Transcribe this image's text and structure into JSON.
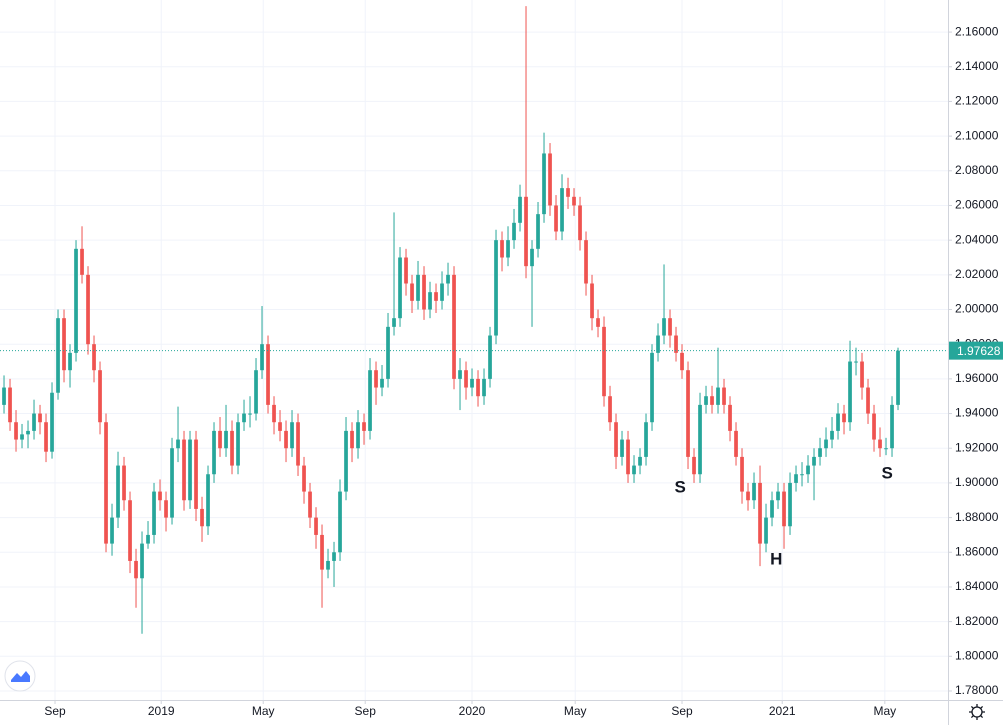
{
  "chart_data": {
    "type": "candlestick",
    "up_color": "#26a69a",
    "down_color": "#ef5350",
    "grid": true,
    "ylim": [
      1.7748,
      2.1785
    ],
    "xlim": [
      -0.67,
      157.33
    ],
    "yticks": [
      {
        "value": 1.78,
        "label": "1.78000"
      },
      {
        "value": 1.8,
        "label": "1.80000"
      },
      {
        "value": 1.82,
        "label": "1.82000"
      },
      {
        "value": 1.84,
        "label": "1.84000"
      },
      {
        "value": 1.86,
        "label": "1.86000"
      },
      {
        "value": 1.88,
        "label": "1.88000"
      },
      {
        "value": 1.9,
        "label": "1.90000"
      },
      {
        "value": 1.92,
        "label": "1.92000"
      },
      {
        "value": 1.94,
        "label": "1.94000"
      },
      {
        "value": 1.96,
        "label": "1.96000"
      },
      {
        "value": 1.98,
        "label": "1.98000"
      },
      {
        "value": 2.0,
        "label": "2.00000"
      },
      {
        "value": 2.02,
        "label": "2.02000"
      },
      {
        "value": 2.04,
        "label": "2.04000"
      },
      {
        "value": 2.06,
        "label": "2.06000"
      },
      {
        "value": 2.08,
        "label": "2.08000"
      },
      {
        "value": 2.1,
        "label": "2.10000"
      },
      {
        "value": 2.12,
        "label": "2.12000"
      },
      {
        "value": 2.14,
        "label": "2.14000"
      },
      {
        "value": 2.16,
        "label": "2.16000"
      }
    ],
    "xticks": [
      {
        "value": 8.5,
        "label": "Sep"
      },
      {
        "value": 26.2,
        "label": "2019"
      },
      {
        "value": 43.2,
        "label": "May"
      },
      {
        "value": 60.2,
        "label": "Sep"
      },
      {
        "value": 78,
        "label": "2020"
      },
      {
        "value": 95.2,
        "label": "May"
      },
      {
        "value": 113,
        "label": "Sep"
      },
      {
        "value": 129.7,
        "label": "2021"
      },
      {
        "value": 146.8,
        "label": "May"
      }
    ],
    "last_label": "1.97628",
    "annotations": [
      {
        "text": "S",
        "x": 112.7,
        "y": 1.897
      },
      {
        "text": "H",
        "x": 128.7,
        "y": 1.8556
      },
      {
        "text": "S",
        "x": 147.2,
        "y": 1.905
      }
    ],
    "ohlc": [
      [
        1.945,
        1.962,
        1.94,
        1.955
      ],
      [
        1.955,
        1.96,
        1.93,
        1.935
      ],
      [
        1.935,
        1.942,
        1.918,
        1.925
      ],
      [
        1.925,
        1.934,
        1.92,
        1.928
      ],
      [
        1.928,
        1.936,
        1.92,
        1.93
      ],
      [
        1.93,
        1.948,
        1.925,
        1.94
      ],
      [
        1.94,
        1.945,
        1.928,
        1.935
      ],
      [
        1.935,
        1.94,
        1.912,
        1.918
      ],
      [
        1.918,
        1.958,
        1.914,
        1.952
      ],
      [
        1.952,
        2.0,
        1.948,
        1.995
      ],
      [
        1.995,
        2.0,
        1.958,
        1.965
      ],
      [
        1.965,
        1.98,
        1.955,
        1.975
      ],
      [
        1.975,
        2.04,
        1.97,
        2.035
      ],
      [
        2.035,
        2.048,
        2.015,
        2.02
      ],
      [
        2.02,
        2.025,
        1.974,
        1.98
      ],
      [
        1.98,
        1.985,
        1.958,
        1.965
      ],
      [
        1.965,
        1.97,
        1.928,
        1.935
      ],
      [
        1.935,
        1.94,
        1.86,
        1.865
      ],
      [
        1.865,
        1.888,
        1.858,
        1.88
      ],
      [
        1.88,
        1.918,
        1.874,
        1.91
      ],
      [
        1.91,
        1.915,
        1.884,
        1.89
      ],
      [
        1.89,
        1.895,
        1.848,
        1.855
      ],
      [
        1.855,
        1.862,
        1.828,
        1.845
      ],
      [
        1.845,
        1.872,
        1.813,
        1.865
      ],
      [
        1.865,
        1.878,
        1.862,
        1.87
      ],
      [
        1.87,
        1.9,
        1.865,
        1.895
      ],
      [
        1.895,
        1.902,
        1.884,
        1.89
      ],
      [
        1.89,
        1.895,
        1.872,
        1.88
      ],
      [
        1.88,
        1.926,
        1.876,
        1.92
      ],
      [
        1.92,
        1.944,
        1.912,
        1.925
      ],
      [
        1.925,
        1.93,
        1.884,
        1.89
      ],
      [
        1.89,
        1.93,
        1.885,
        1.925
      ],
      [
        1.925,
        1.93,
        1.878,
        1.885
      ],
      [
        1.885,
        1.892,
        1.866,
        1.875
      ],
      [
        1.875,
        1.91,
        1.87,
        1.905
      ],
      [
        1.905,
        1.935,
        1.9,
        1.93
      ],
      [
        1.93,
        1.938,
        1.915,
        1.92
      ],
      [
        1.92,
        1.945,
        1.915,
        1.93
      ],
      [
        1.93,
        1.936,
        1.905,
        1.91
      ],
      [
        1.91,
        1.94,
        1.905,
        1.935
      ],
      [
        1.935,
        1.948,
        1.93,
        1.94
      ],
      [
        1.94,
        1.95,
        1.932,
        1.94
      ],
      [
        1.94,
        1.972,
        1.936,
        1.965
      ],
      [
        1.965,
        2.002,
        1.96,
        1.98
      ],
      [
        1.98,
        1.985,
        1.94,
        1.945
      ],
      [
        1.945,
        1.95,
        1.928,
        1.935
      ],
      [
        1.935,
        1.942,
        1.924,
        1.93
      ],
      [
        1.93,
        1.936,
        1.912,
        1.92
      ],
      [
        1.92,
        1.942,
        1.915,
        1.935
      ],
      [
        1.935,
        1.94,
        1.904,
        1.91
      ],
      [
        1.91,
        1.915,
        1.888,
        1.895
      ],
      [
        1.895,
        1.9,
        1.874,
        1.88
      ],
      [
        1.88,
        1.886,
        1.862,
        1.87
      ],
      [
        1.87,
        1.876,
        1.828,
        1.85
      ],
      [
        1.85,
        1.862,
        1.845,
        1.855
      ],
      [
        1.855,
        1.866,
        1.84,
        1.86
      ],
      [
        1.86,
        1.902,
        1.855,
        1.895
      ],
      [
        1.895,
        1.938,
        1.89,
        1.93
      ],
      [
        1.93,
        1.935,
        1.912,
        1.92
      ],
      [
        1.92,
        1.942,
        1.914,
        1.935
      ],
      [
        1.935,
        1.94,
        1.922,
        1.93
      ],
      [
        1.93,
        1.972,
        1.925,
        1.965
      ],
      [
        1.965,
        1.97,
        1.945,
        1.955
      ],
      [
        1.955,
        1.968,
        1.95,
        1.96
      ],
      [
        1.96,
        1.998,
        1.955,
        1.99
      ],
      [
        1.99,
        2.056,
        1.985,
        1.995
      ],
      [
        1.995,
        2.036,
        1.99,
        2.03
      ],
      [
        2.03,
        2.035,
        2.008,
        2.015
      ],
      [
        2.015,
        2.02,
        1.998,
        2.005
      ],
      [
        2.005,
        2.028,
        2.0,
        2.02
      ],
      [
        2.02,
        2.025,
        1.994,
        2.0
      ],
      [
        2.0,
        2.016,
        1.995,
        2.01
      ],
      [
        2.01,
        2.015,
        1.998,
        2.005
      ],
      [
        2.005,
        2.022,
        2.0,
        2.015
      ],
      [
        2.015,
        2.027,
        2.008,
        2.02
      ],
      [
        2.02,
        2.025,
        1.954,
        1.96
      ],
      [
        1.96,
        1.972,
        1.942,
        1.965
      ],
      [
        1.965,
        1.97,
        1.948,
        1.955
      ],
      [
        1.955,
        1.966,
        1.95,
        1.96
      ],
      [
        1.96,
        1.965,
        1.944,
        1.95
      ],
      [
        1.95,
        1.966,
        1.945,
        1.96
      ],
      [
        1.96,
        1.99,
        1.955,
        1.985
      ],
      [
        1.985,
        2.046,
        1.98,
        2.04
      ],
      [
        2.04,
        2.045,
        2.022,
        2.03
      ],
      [
        2.03,
        2.048,
        2.025,
        2.04
      ],
      [
        2.04,
        2.058,
        2.035,
        2.05
      ],
      [
        2.05,
        2.072,
        2.045,
        2.065
      ],
      [
        2.065,
        2.175,
        2.018,
        2.025
      ],
      [
        2.025,
        2.04,
        1.99,
        2.035
      ],
      [
        2.035,
        2.062,
        2.03,
        2.055
      ],
      [
        2.055,
        2.102,
        2.05,
        2.09
      ],
      [
        2.09,
        2.096,
        2.054,
        2.06
      ],
      [
        2.06,
        2.066,
        2.04,
        2.045
      ],
      [
        2.045,
        2.078,
        2.04,
        2.07
      ],
      [
        2.07,
        2.076,
        2.058,
        2.065
      ],
      [
        2.065,
        2.07,
        2.054,
        2.06
      ],
      [
        2.06,
        2.065,
        2.034,
        2.04
      ],
      [
        2.04,
        2.045,
        2.008,
        2.015
      ],
      [
        2.015,
        2.02,
        1.988,
        1.995
      ],
      [
        1.995,
        2.0,
        1.984,
        1.99
      ],
      [
        1.99,
        1.996,
        1.944,
        1.95
      ],
      [
        1.95,
        1.956,
        1.93,
        1.935
      ],
      [
        1.935,
        1.94,
        1.908,
        1.915
      ],
      [
        1.915,
        1.93,
        1.91,
        1.925
      ],
      [
        1.925,
        1.93,
        1.9,
        1.905
      ],
      [
        1.905,
        1.916,
        1.9,
        1.91
      ],
      [
        1.91,
        1.92,
        1.905,
        1.915
      ],
      [
        1.915,
        1.94,
        1.91,
        1.935
      ],
      [
        1.935,
        1.98,
        1.93,
        1.975
      ],
      [
        1.975,
        1.992,
        1.97,
        1.985
      ],
      [
        1.985,
        2.026,
        1.98,
        1.995
      ],
      [
        1.995,
        2.0,
        1.978,
        1.985
      ],
      [
        1.985,
        1.99,
        1.97,
        1.975
      ],
      [
        1.975,
        1.98,
        1.96,
        1.965
      ],
      [
        1.965,
        1.97,
        1.908,
        1.915
      ],
      [
        1.915,
        1.92,
        1.9,
        1.905
      ],
      [
        1.905,
        1.952,
        1.9,
        1.945
      ],
      [
        1.945,
        1.956,
        1.94,
        1.95
      ],
      [
        1.95,
        1.956,
        1.94,
        1.945
      ],
      [
        1.945,
        1.978,
        1.94,
        1.955
      ],
      [
        1.955,
        1.96,
        1.94,
        1.945
      ],
      [
        1.945,
        1.95,
        1.924,
        1.93
      ],
      [
        1.93,
        1.935,
        1.91,
        1.915
      ],
      [
        1.915,
        1.92,
        1.888,
        1.895
      ],
      [
        1.895,
        1.9,
        1.884,
        1.89
      ],
      [
        1.89,
        1.906,
        1.885,
        1.9
      ],
      [
        1.9,
        1.91,
        1.852,
        1.865
      ],
      [
        1.865,
        1.888,
        1.86,
        1.88
      ],
      [
        1.88,
        1.895,
        1.875,
        1.89
      ],
      [
        1.89,
        1.9,
        1.885,
        1.895
      ],
      [
        1.895,
        1.9,
        1.862,
        1.875
      ],
      [
        1.875,
        1.906,
        1.87,
        1.9
      ],
      [
        1.9,
        1.91,
        1.895,
        1.905
      ],
      [
        1.905,
        1.912,
        1.898,
        1.905
      ],
      [
        1.905,
        1.916,
        1.9,
        1.91
      ],
      [
        1.91,
        1.92,
        1.89,
        1.915
      ],
      [
        1.915,
        1.926,
        1.91,
        1.92
      ],
      [
        1.92,
        1.932,
        1.915,
        1.925
      ],
      [
        1.925,
        1.938,
        1.92,
        1.93
      ],
      [
        1.93,
        1.946,
        1.925,
        1.94
      ],
      [
        1.94,
        1.945,
        1.928,
        1.935
      ],
      [
        1.935,
        1.982,
        1.93,
        1.97
      ],
      [
        1.97,
        1.978,
        1.962,
        1.97
      ],
      [
        1.97,
        1.975,
        1.948,
        1.955
      ],
      [
        1.955,
        1.96,
        1.934,
        1.94
      ],
      [
        1.94,
        1.945,
        1.918,
        1.925
      ],
      [
        1.925,
        1.932,
        1.915,
        1.92
      ],
      [
        1.92,
        1.926,
        1.916,
        1.92
      ],
      [
        1.92,
        1.95,
        1.915,
        1.945
      ],
      [
        1.945,
        1.978,
        1.942,
        1.97628
      ]
    ]
  }
}
